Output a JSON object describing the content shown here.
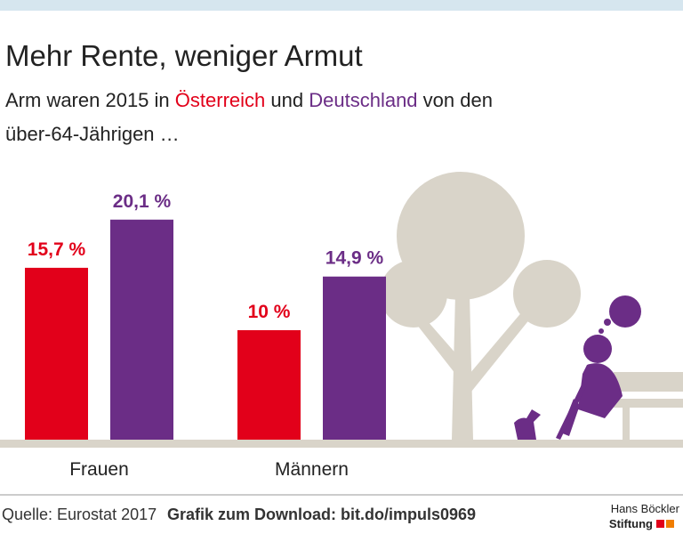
{
  "chart_data": {
    "type": "bar",
    "title": "Mehr Rente, weniger Armut",
    "subtitle": [
      "Arm waren 2015 in",
      "und",
      "von den",
      "über-64-Jährigen …"
    ],
    "categories": [
      "Frauen",
      "Männern"
    ],
    "series": [
      {
        "name": "Österreich",
        "color": "#e2001a",
        "values": [
          15.7,
          10
        ],
        "value_labels": [
          "15,7 %",
          "10 %"
        ]
      },
      {
        "name": "Deutschland",
        "color": "#6b2d86",
        "values": [
          20.1,
          14.9
        ],
        "value_labels": [
          "20,1 %",
          "14,9 %"
        ]
      }
    ],
    "source": "Quelle: Eurostat 2017",
    "download": "Grafik zum Download: bit.do/impuls0969",
    "logo": [
      "Hans Böckler",
      "Stiftung"
    ]
  }
}
